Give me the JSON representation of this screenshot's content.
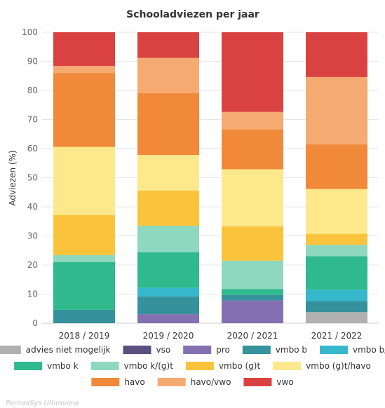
{
  "chart_data": {
    "type": "bar",
    "stacked": true,
    "title": "Schooladviezen per jaar",
    "xlabel": "",
    "ylabel": "Adviezen (%)",
    "ylim": [
      0,
      100
    ],
    "yticks": [
      0,
      10,
      20,
      30,
      40,
      50,
      60,
      70,
      80,
      90,
      100
    ],
    "grid": true,
    "legend_position": "bottom",
    "categories": [
      "2018 / 2019",
      "2019 / 2020",
      "2020 / 2021",
      "2021 / 2022"
    ],
    "series": [
      {
        "name": "advies niet mogelijk",
        "color": "#b0b0b0",
        "values": [
          0,
          0,
          0,
          3.8
        ]
      },
      {
        "name": "vso",
        "color": "#5a4f80",
        "values": [
          0,
          0,
          0,
          0
        ]
      },
      {
        "name": "pro",
        "color": "#8470b0",
        "values": [
          0,
          3.1,
          7.8,
          0
        ]
      },
      {
        "name": "vmbo b",
        "color": "#35919c",
        "values": [
          4.6,
          6.1,
          1.9,
          3.8
        ]
      },
      {
        "name": "vmbo b/k",
        "color": "#36b7cc",
        "values": [
          0,
          3.0,
          0,
          3.9
        ]
      },
      {
        "name": "vmbo k",
        "color": "#2fb98c",
        "values": [
          16.4,
          12.2,
          2.0,
          11.5
        ]
      },
      {
        "name": "vmbo k/(g)t",
        "color": "#8dd8bf",
        "values": [
          2.4,
          9.1,
          9.8,
          3.9
        ]
      },
      {
        "name": "vmbo (g)t",
        "color": "#f9c33c",
        "values": [
          13.8,
          12.1,
          11.8,
          3.8
        ]
      },
      {
        "name": "vmbo (g)t/havo",
        "color": "#fde98b",
        "values": [
          23.4,
          12.2,
          19.6,
          15.4
        ]
      },
      {
        "name": "havo",
        "color": "#f0893a",
        "values": [
          25.4,
          21.3,
          13.7,
          15.4
        ]
      },
      {
        "name": "havo/vwo",
        "color": "#f5aa72",
        "values": [
          2.4,
          12.1,
          6.0,
          23.1
        ]
      },
      {
        "name": "vwo",
        "color": "#d94240",
        "values": [
          11.6,
          8.8,
          27.4,
          15.4
        ]
      }
    ]
  },
  "footer": {
    "credit": "ParnasSys Ultimview"
  }
}
